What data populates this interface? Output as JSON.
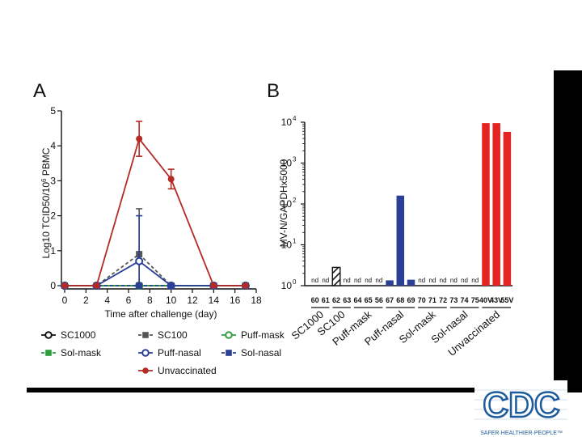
{
  "logo": {
    "text": "CDC",
    "tagline": "SAFER·HEALTHIER·PEOPLE™"
  },
  "chart_data": [
    {
      "panel": "A",
      "type": "line",
      "xlabel": "Time after challenge (day)",
      "ylabel_parts": [
        "Log10 TCID50/10",
        "6",
        " PBMC"
      ],
      "x_ticks": [
        0,
        2,
        4,
        6,
        8,
        10,
        12,
        14,
        16,
        18
      ],
      "y_ticks": [
        0,
        1,
        2,
        3,
        4,
        5
      ],
      "xlim": [
        0,
        18
      ],
      "ylim": [
        0,
        5
      ],
      "series": [
        {
          "name": "SC1000",
          "color": "#111111",
          "marker": "circle-open",
          "dash": false,
          "x": [
            0,
            3,
            7,
            10,
            14,
            17
          ],
          "y": [
            0,
            0,
            0,
            0,
            0,
            0
          ]
        },
        {
          "name": "SC100",
          "color": "#555555",
          "marker": "square",
          "dash": true,
          "x": [
            0,
            3,
            7,
            10,
            14,
            17
          ],
          "y": [
            0,
            0,
            0.9,
            0,
            0,
            0
          ],
          "err": [
            0,
            0,
            1.3,
            0,
            0,
            0
          ]
        },
        {
          "name": "Puff-mask",
          "color": "#2e9e3e",
          "marker": "circle-open",
          "dash": false,
          "x": [
            0,
            3,
            7,
            10,
            14,
            17
          ],
          "y": [
            0,
            0,
            0,
            0,
            0,
            0
          ]
        },
        {
          "name": "Sol-mask",
          "color": "#2e9e3e",
          "marker": "square",
          "dash": true,
          "x": [
            0,
            3,
            7,
            10,
            14,
            17
          ],
          "y": [
            0,
            0,
            0,
            0,
            0,
            0
          ]
        },
        {
          "name": "Puff-nasal",
          "color": "#2b3f95",
          "marker": "circle-open",
          "dash": false,
          "x": [
            0,
            3,
            7,
            10,
            14,
            17
          ],
          "y": [
            0,
            0,
            0.7,
            0,
            0,
            0
          ],
          "err": [
            0,
            0,
            1.3,
            0,
            0,
            0
          ]
        },
        {
          "name": "Sol-nasal",
          "color": "#2b3f95",
          "marker": "square",
          "dash": true,
          "x": [
            0,
            3,
            7,
            10,
            14,
            17
          ],
          "y": [
            0,
            0,
            0,
            0,
            0,
            0
          ]
        },
        {
          "name": "Unvaccinated",
          "color": "#b52a25",
          "marker": "circle",
          "dash": false,
          "x": [
            0,
            3,
            7,
            10,
            14,
            17
          ],
          "y": [
            0,
            0,
            4.2,
            3.05,
            0,
            0
          ],
          "err": [
            0,
            0,
            0.5,
            0.28,
            0,
            0
          ]
        }
      ]
    },
    {
      "panel": "B",
      "type": "bar",
      "ylabel": "MV-N/GAPDHx5000",
      "yscale": "log",
      "ylim_exp": [
        0,
        4
      ],
      "y_tick_base": "10",
      "y_tick_exps": [
        "0",
        "1",
        "2",
        "3",
        "4"
      ],
      "nd_label": "nd",
      "animals": [
        "60",
        "61",
        "62",
        "63",
        "64",
        "65",
        "56",
        "67",
        "68",
        "69",
        "70",
        "71",
        "72",
        "73",
        "74",
        "75",
        "40V",
        "43V",
        "55V"
      ],
      "values": [
        null,
        null,
        2.8,
        null,
        null,
        null,
        null,
        1.35,
        160,
        1.4,
        null,
        null,
        null,
        null,
        null,
        null,
        9500,
        9500,
        5800
      ],
      "bar_colors": [
        "",
        "",
        "hatched",
        "",
        "",
        "",
        "",
        "#2b3f95",
        "#2b3f95",
        "#2b3f95",
        "",
        "",
        "",
        "",
        "",
        "",
        "#e52421",
        "#e52421",
        "#e52421"
      ],
      "groups": [
        {
          "label": "SC1000",
          "members": [
            "60",
            "61"
          ]
        },
        {
          "label": "SC100",
          "members": [
            "62",
            "63"
          ]
        },
        {
          "label": "Puff-mask",
          "members": [
            "64",
            "65",
            "56"
          ]
        },
        {
          "label": "Puff-nasal",
          "members": [
            "67",
            "68",
            "69"
          ]
        },
        {
          "label": "Sol-mask",
          "members": [
            "70",
            "71",
            "72"
          ]
        },
        {
          "label": "Sol-nasal",
          "members": [
            "73",
            "74",
            "75"
          ]
        },
        {
          "label": "Unvaccinated",
          "members": [
            "40V",
            "43V",
            "55V"
          ]
        }
      ]
    }
  ]
}
